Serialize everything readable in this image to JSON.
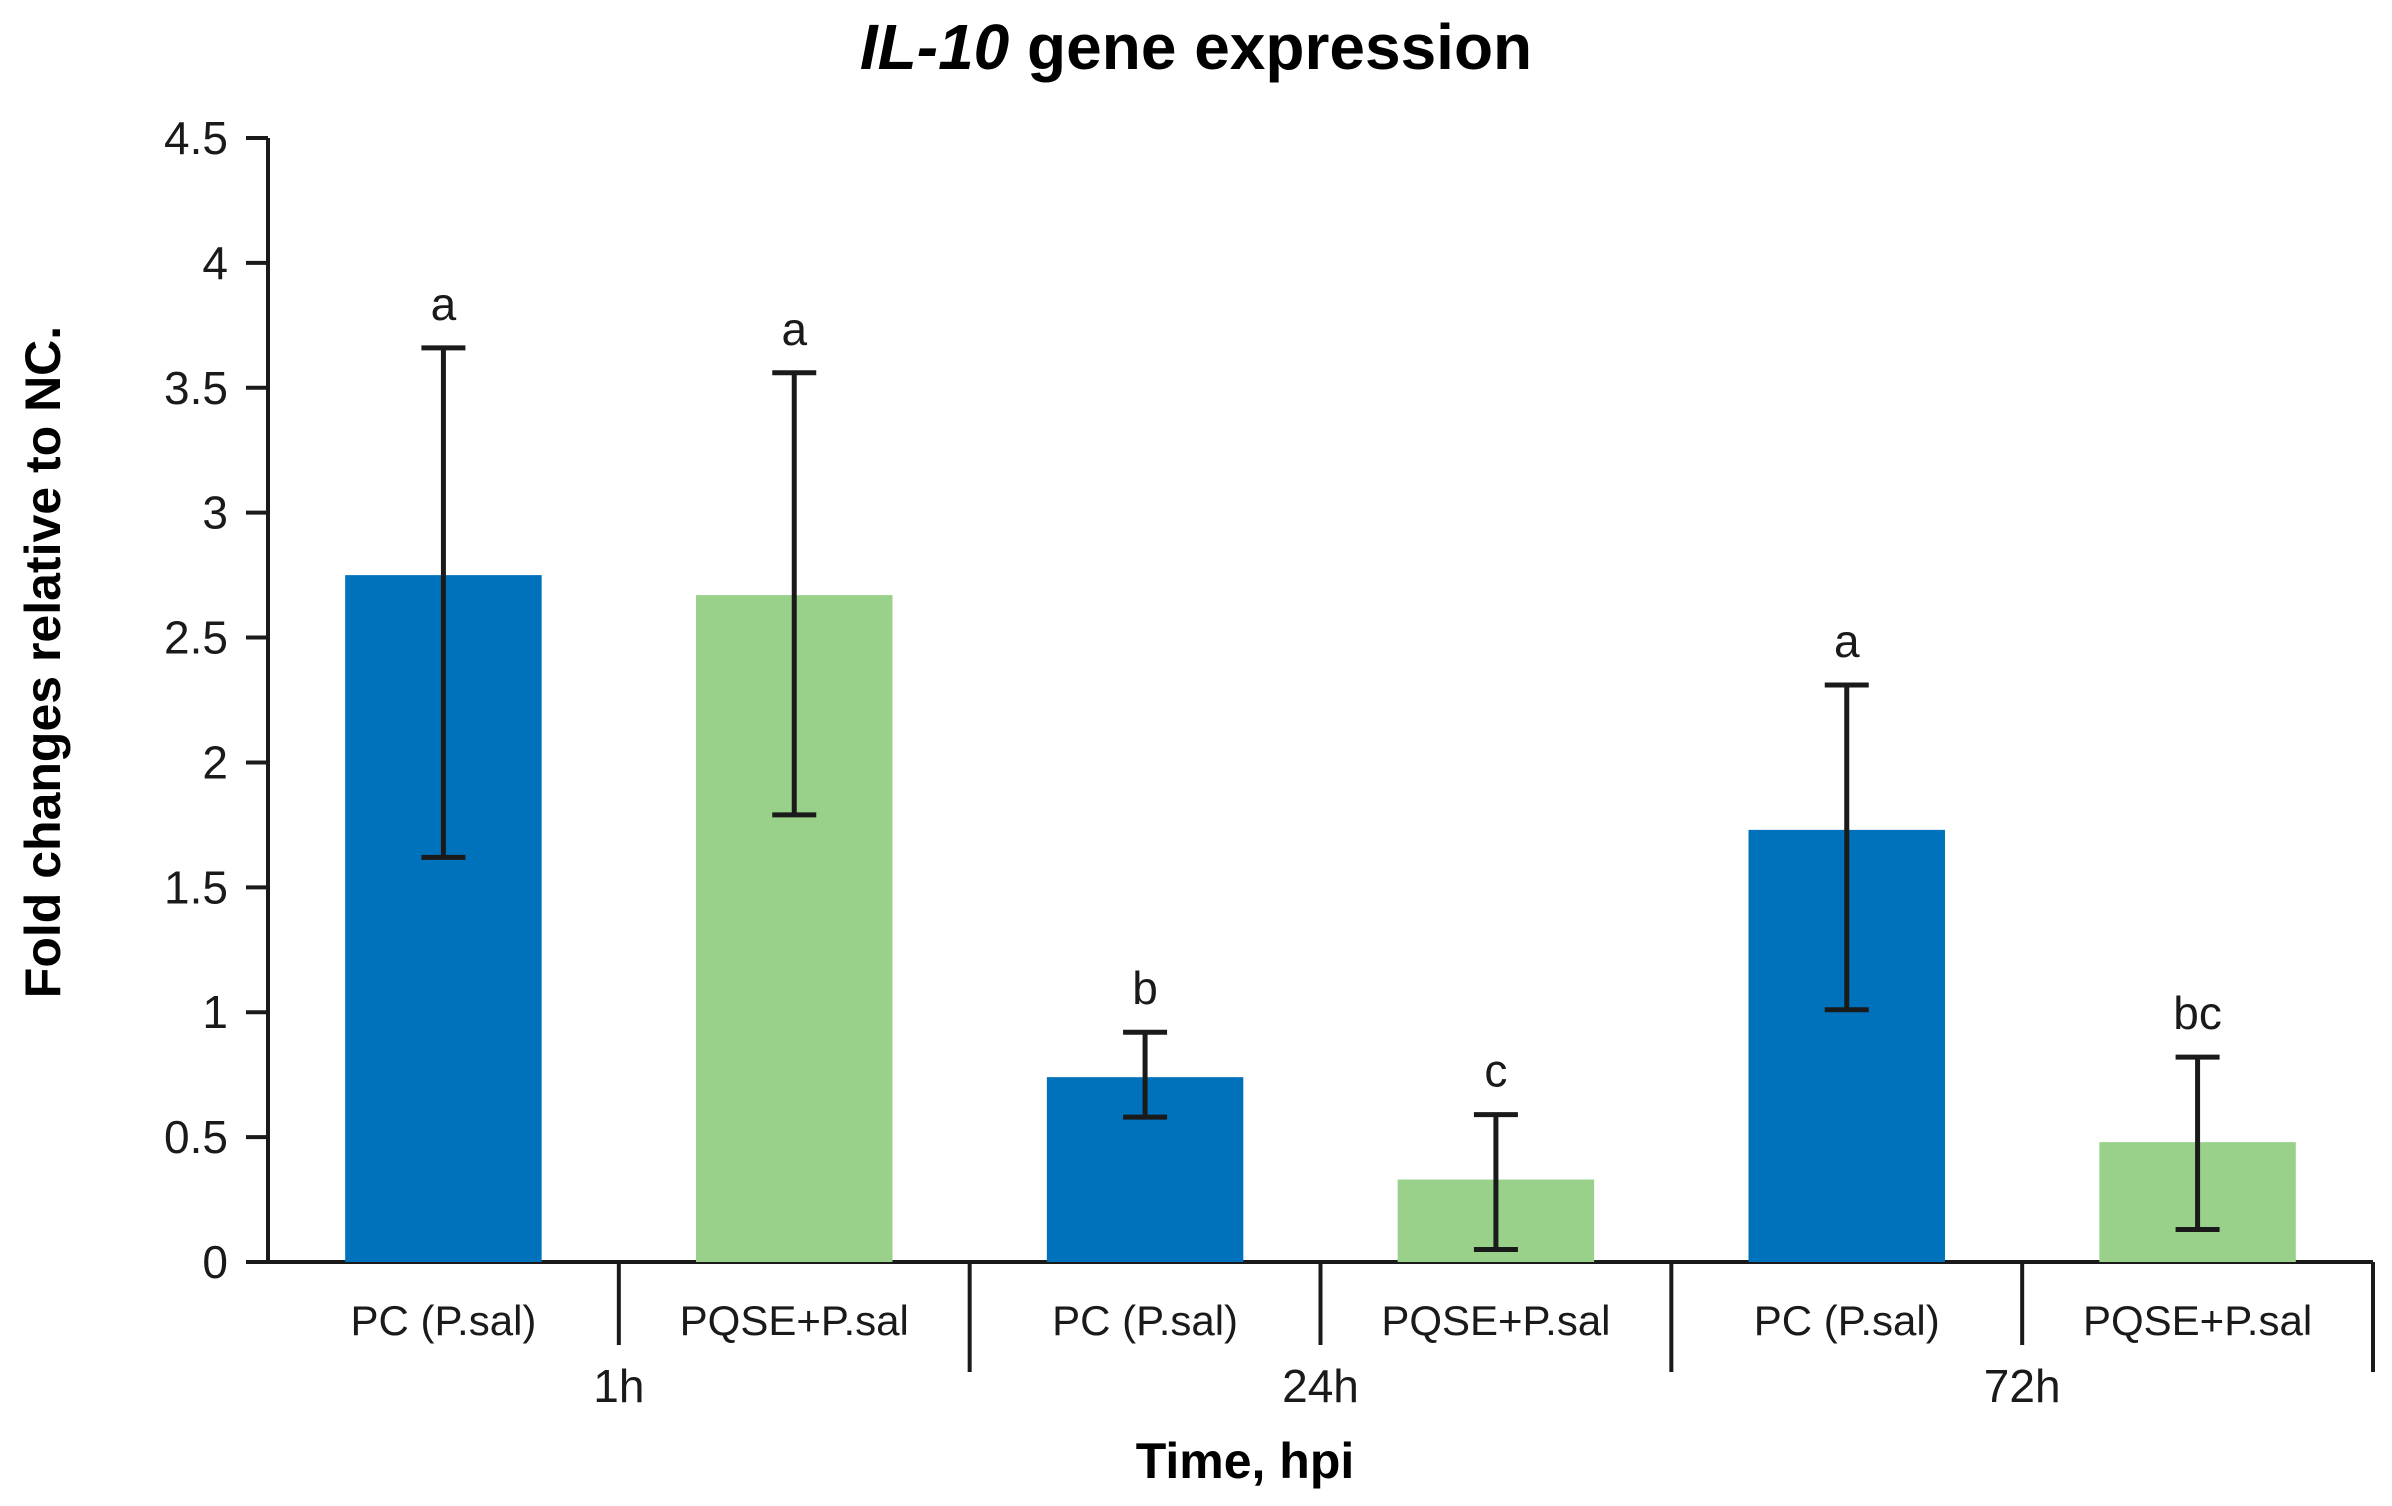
{
  "chart_data": {
    "type": "bar",
    "title_gene": "IL-10",
    "title_rest": " gene expression",
    "ylabel": "Fold changes relative to NC.",
    "xlabel": "Time, hpi",
    "ylim": [
      0,
      4.5
    ],
    "yticks": [
      "0",
      "0.5",
      "1",
      "1.5",
      "2",
      "2.5",
      "3",
      "3.5",
      "4",
      "4.5"
    ],
    "grid": false,
    "groups": [
      "1h",
      "24h",
      "72h"
    ],
    "bars": [
      {
        "group": 0,
        "category": "PC (P.sal)",
        "value": 2.75,
        "err_low": 1.62,
        "err_high": 3.66,
        "label": "a",
        "color": "#0072bc"
      },
      {
        "group": 0,
        "category": "PQSE+P.sal",
        "value": 2.67,
        "err_low": 1.79,
        "err_high": 3.56,
        "label": "a",
        "color": "#99d18b"
      },
      {
        "group": 1,
        "category": "PC (P.sal)",
        "value": 0.74,
        "err_low": 0.58,
        "err_high": 0.92,
        "label": "b",
        "color": "#0072bc"
      },
      {
        "group": 1,
        "category": "PQSE+P.sal",
        "value": 0.33,
        "err_low": 0.05,
        "err_high": 0.59,
        "label": "c",
        "color": "#99d18b"
      },
      {
        "group": 2,
        "category": "PC (P.sal)",
        "value": 1.73,
        "err_low": 1.01,
        "err_high": 2.31,
        "label": "a",
        "color": "#0072bc"
      },
      {
        "group": 2,
        "category": "PQSE+P.sal",
        "value": 0.48,
        "err_low": 0.13,
        "err_high": 0.82,
        "label": "bc",
        "color": "#99d18b"
      }
    ]
  }
}
